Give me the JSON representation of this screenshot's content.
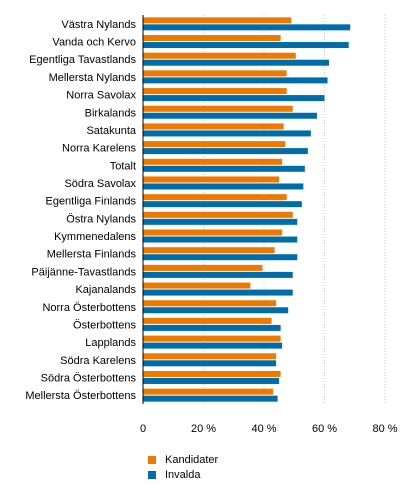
{
  "chart_data": {
    "type": "bar",
    "orientation": "horizontal",
    "categories": [
      "Västra Nylands",
      "Vanda och Kervo",
      "Egentliga Tavastlands",
      "Mellersta Nylands",
      "Norra Savolax",
      "Birkalands",
      "Satakunta",
      "Norra Karelens",
      "Totalt",
      "Södra Savolax",
      "Egentliga Finlands",
      "Östra Nylands",
      "Kymmenedalens",
      "Mellersta Finlands",
      "Päijänne-Tavastlands",
      "Kajanalands",
      "Norra Österbottens",
      "Österbottens",
      "Lapplands",
      "Södra Karelens",
      "Södra Österbottens",
      "Mellersta Österbottens"
    ],
    "series": [
      {
        "name": "Kandidater",
        "color": "#ee7900",
        "values": [
          49,
          45.5,
          50.5,
          47.5,
          47.5,
          49.5,
          46.5,
          47,
          46,
          45,
          47.5,
          49.5,
          46,
          43.5,
          39.5,
          35.5,
          44,
          42.5,
          45.5,
          44,
          45.5,
          43
        ]
      },
      {
        "name": "Invalda",
        "color": "#006da8",
        "values": [
          68.5,
          68,
          61.5,
          61,
          60,
          57.5,
          55.5,
          54.5,
          53.5,
          53,
          52.5,
          51,
          51,
          51,
          49.5,
          49.5,
          48,
          45.5,
          46,
          44,
          45,
          44.5
        ]
      }
    ],
    "xticks": [
      "0",
      "20 %",
      "40 %",
      "60 %",
      "80 %"
    ],
    "xtick_values": [
      0,
      20,
      40,
      60,
      80
    ],
    "xlim": [
      0,
      80
    ],
    "grid": true,
    "legend_position": "bottom"
  }
}
